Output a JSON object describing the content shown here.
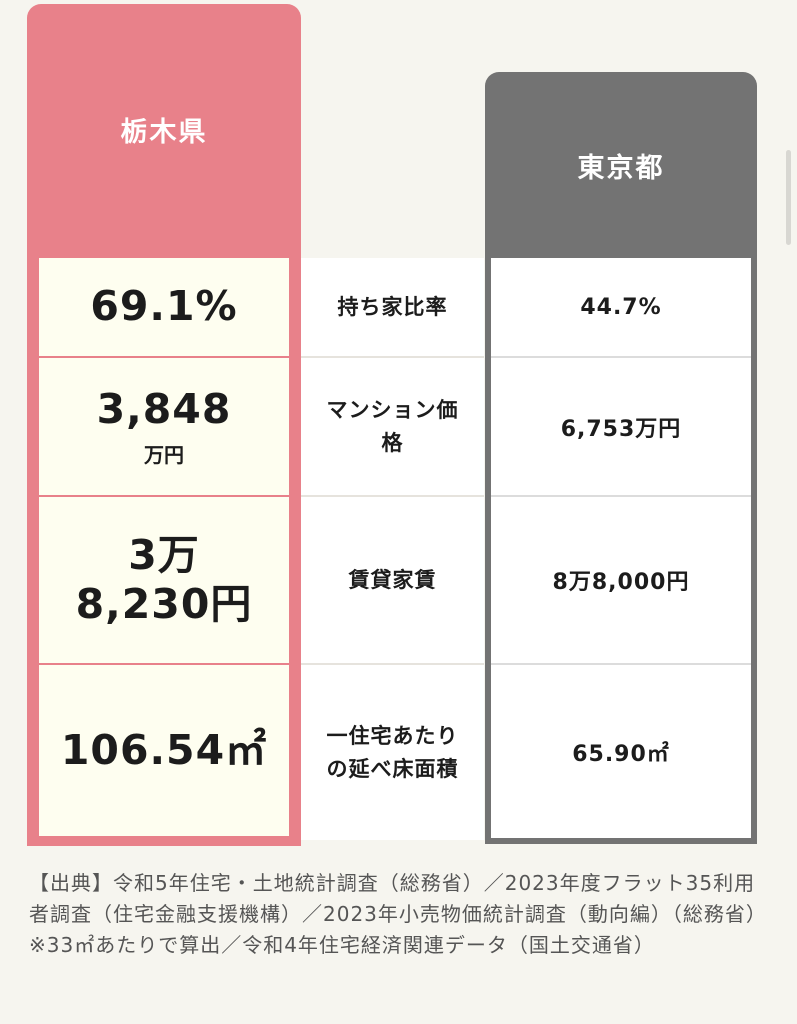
{
  "tochigi": {
    "header": "栃木県",
    "ownership_rate": "69.1%",
    "mansion_price_value": "3,848",
    "mansion_price_unit": "万円",
    "rent_line1": "3万",
    "rent_line2": "8,230円",
    "floor_area": "106.54㎡"
  },
  "labels": {
    "ownership_rate": "持ち家比率",
    "mansion_price": "マンション価格",
    "rent": "賃貸家賃",
    "floor_area": "一住宅あたりの延べ床面積"
  },
  "tokyo": {
    "header": "東京都",
    "ownership_rate": "44.7%",
    "mansion_price": "6,753万円",
    "rent": "8万8,000円",
    "floor_area": "65.90㎡"
  },
  "footnote": {
    "source": "【出典】令和5年住宅・土地統計調査（総務省）／2023年度フラット35利用者調査（住宅金融支援機構）／2023年小売物価統計調査（動向編）（総務省）",
    "note": "※33㎡あたりで算出／令和4年住宅経済関連データ（国土交通省）"
  },
  "colors": {
    "tochigi_accent": "#e8818a",
    "tochigi_cell_bg": "#fefef0",
    "tokyo_accent": "#737373",
    "page_bg": "#f6f5ef"
  }
}
